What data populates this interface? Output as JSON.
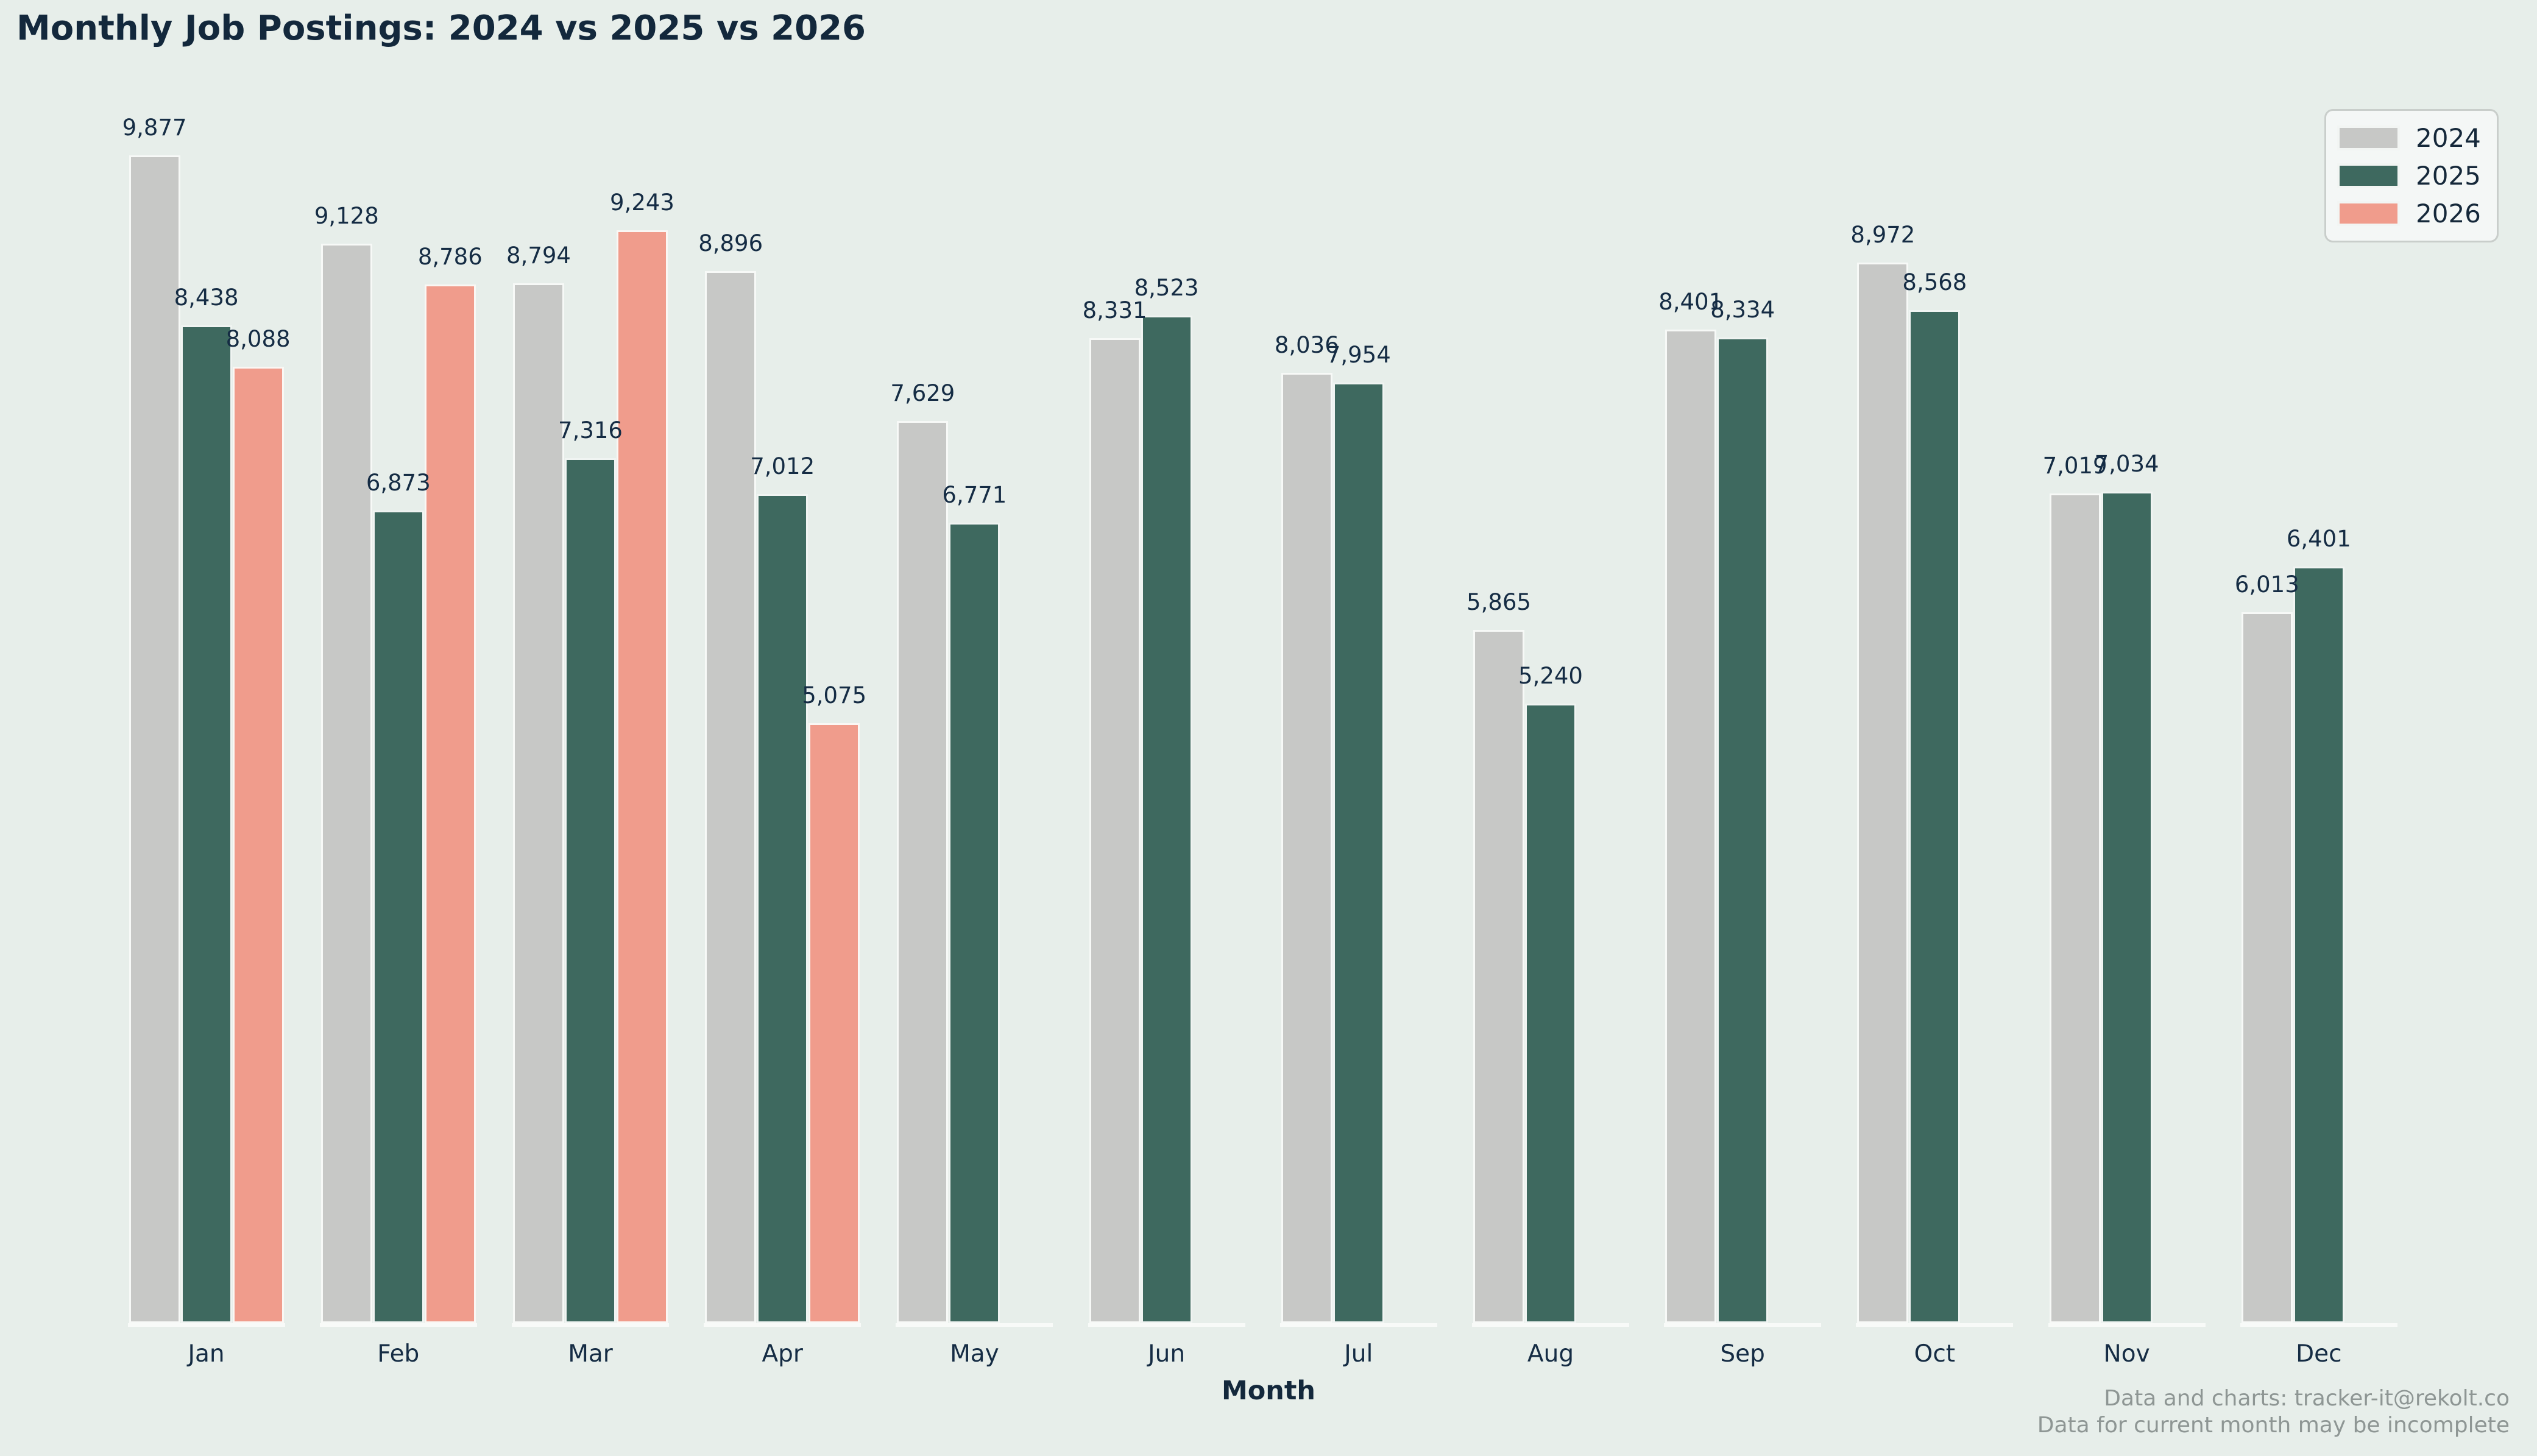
{
  "title": "Monthly Job Postings: 2024 vs 2025 vs 2026",
  "xlabel": "Month",
  "footer": {
    "line1": "Data and charts: tracker-it@rekolt.co",
    "line2": "Data for current month may be incomplete"
  },
  "colors": {
    "background": "#e7eeea",
    "text_navy": "#152c44",
    "footer_gray": "#8e9694",
    "bar_edge_white": "#f8faf8",
    "series_2024": "#c7c8c6",
    "series_2025": "#3e695f",
    "series_2026": "#f09c8c"
  },
  "legend": {
    "position": "upper right",
    "items": [
      {
        "label": "2024",
        "color": "#c7c8c6"
      },
      {
        "label": "2025",
        "color": "#3e695f"
      },
      {
        "label": "2026",
        "color": "#f09c8c"
      }
    ]
  },
  "chart_data": {
    "type": "bar",
    "title": "Monthly Job Postings: 2024 vs 2025 vs 2026",
    "xlabel": "Month",
    "ylabel": "",
    "categories": [
      "Jan",
      "Feb",
      "Mar",
      "Apr",
      "May",
      "Jun",
      "Jul",
      "Aug",
      "Sep",
      "Oct",
      "Nov",
      "Dec"
    ],
    "series": [
      {
        "name": "2024",
        "color": "#c7c8c6",
        "values": [
          9877,
          9128,
          8794,
          8896,
          7629,
          8331,
          8036,
          5865,
          8401,
          8972,
          7019,
          6013
        ]
      },
      {
        "name": "2025",
        "color": "#3e695f",
        "values": [
          8438,
          6873,
          7316,
          7012,
          6771,
          8523,
          7954,
          5240,
          8334,
          8568,
          7034,
          6401
        ]
      },
      {
        "name": "2026",
        "color": "#f09c8c",
        "values": [
          8088,
          8786,
          9243,
          5075,
          null,
          null,
          null,
          null,
          null,
          null,
          null,
          null
        ]
      }
    ],
    "ylim": [
      0,
      10400
    ],
    "grid": false,
    "bar_labels": true,
    "legend_position": "upper right"
  }
}
